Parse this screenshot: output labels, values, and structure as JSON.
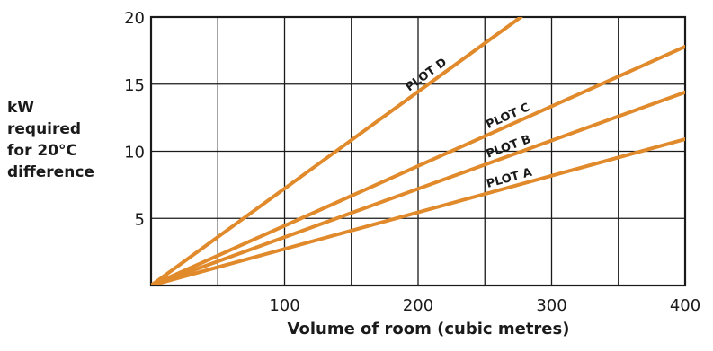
{
  "chart_data": {
    "type": "line",
    "xlabel": "Volume of room (cubic metres)",
    "ylabel_lines": [
      "kW",
      "required",
      "for 20°C",
      "difference"
    ],
    "xlim": [
      0,
      400
    ],
    "ylim": [
      0,
      20
    ],
    "x_ticks": [
      100,
      200,
      300,
      400
    ],
    "y_ticks": [
      5,
      10,
      15,
      20
    ],
    "grid": true,
    "series": [
      {
        "name": "PLOT A",
        "x": [
          0,
          400
        ],
        "values": [
          0,
          10.9
        ]
      },
      {
        "name": "PLOT B",
        "x": [
          0,
          400
        ],
        "values": [
          0,
          14.4
        ]
      },
      {
        "name": "PLOT C",
        "x": [
          0,
          400
        ],
        "values": [
          0,
          17.8
        ]
      },
      {
        "name": "PLOT D",
        "x": [
          0,
          277
        ],
        "values": [
          0,
          20
        ]
      }
    ],
    "colors": {
      "line": "#e08a2c",
      "grid": "#1a1a1a",
      "background": "#ffffff"
    }
  }
}
